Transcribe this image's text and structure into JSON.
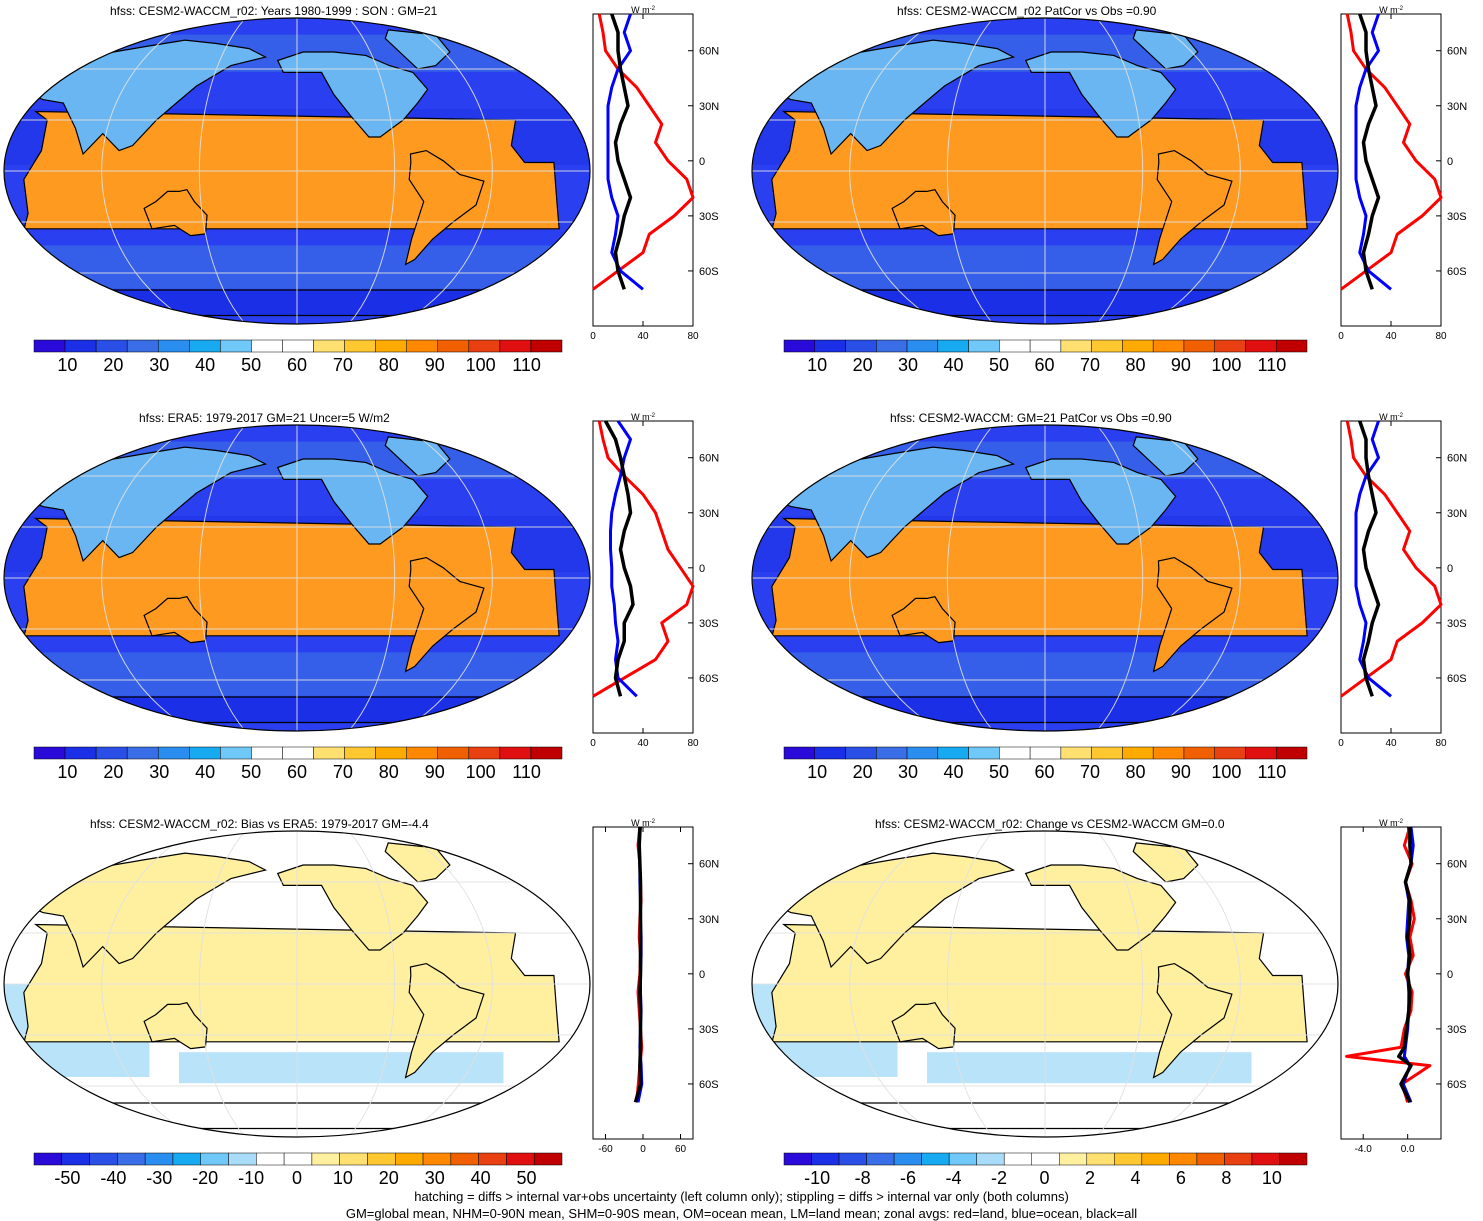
{
  "panels": [
    {
      "id": "p1",
      "title": "hfss: CESM2-WACCM_r02: Years 1980-1999 : SON : GM=21",
      "colorbar": {
        "labels": [
          "10",
          "20",
          "30",
          "40",
          "50",
          "60",
          "70",
          "80",
          "90",
          "100",
          "110"
        ]
      },
      "zonal": {
        "unit": "W m",
        "unit_sup": "-2",
        "xticks": [
          "0",
          "40",
          "80"
        ],
        "yticks": [
          "60N",
          "30N",
          "0",
          "30S",
          "60S"
        ]
      }
    },
    {
      "id": "p2",
      "title": "hfss: CESM2-WACCM_r02 PatCor vs Obs =0.90",
      "colorbar": {
        "labels": [
          "10",
          "20",
          "30",
          "40",
          "50",
          "60",
          "70",
          "80",
          "90",
          "100",
          "110"
        ]
      },
      "zonal": {
        "unit": "W m",
        "unit_sup": "-2",
        "xticks": [
          "0",
          "40",
          "80"
        ],
        "yticks": [
          "60N",
          "30N",
          "0",
          "30S",
          "60S"
        ]
      }
    },
    {
      "id": "p3",
      "title": "hfss: ERA5: 1979-2017 GM=21 Uncer=5 W/m2",
      "colorbar": {
        "labels": [
          "10",
          "20",
          "30",
          "40",
          "50",
          "60",
          "70",
          "80",
          "90",
          "100",
          "110"
        ]
      },
      "zonal": {
        "unit": "W m",
        "unit_sup": "-2",
        "xticks": [
          "0",
          "40",
          "80"
        ],
        "yticks": [
          "60N",
          "30N",
          "0",
          "30S",
          "60S"
        ]
      }
    },
    {
      "id": "p4",
      "title": "hfss: CESM2-WACCM: GM=21 PatCor vs Obs =0.90",
      "colorbar": {
        "labels": [
          "10",
          "20",
          "30",
          "40",
          "50",
          "60",
          "70",
          "80",
          "90",
          "100",
          "110"
        ]
      },
      "zonal": {
        "unit": "W m",
        "unit_sup": "-2",
        "xticks": [
          "0",
          "40",
          "80"
        ],
        "yticks": [
          "60N",
          "30N",
          "0",
          "30S",
          "60S"
        ]
      }
    },
    {
      "id": "p5",
      "title": "hfss: CESM2-WACCM_r02: Bias vs ERA5: 1979-2017  GM=-4.4",
      "colorbar": {
        "labels": [
          "-50",
          "-40",
          "-30",
          "-20",
          "-10",
          "0",
          "10",
          "20",
          "30",
          "40",
          "50"
        ]
      },
      "zonal": {
        "unit": "W m",
        "unit_sup": "-2",
        "xticks": [
          "-60",
          "0",
          "60"
        ],
        "yticks": [
          "60N",
          "30N",
          "0",
          "30S",
          "60S"
        ]
      }
    },
    {
      "id": "p6",
      "title": "hfss: CESM2-WACCM_r02: Change vs CESM2-WACCM GM=0.0",
      "colorbar": {
        "labels": [
          "-10",
          "-8",
          "-6",
          "-4",
          "-2",
          "0",
          "2",
          "4",
          "6",
          "8",
          "10"
        ]
      },
      "zonal": {
        "unit": "W m",
        "unit_sup": "-2",
        "xticks": [
          "-4.0",
          "0.0"
        ],
        "yticks": [
          "60N",
          "30N",
          "0",
          "30S",
          "60S"
        ]
      }
    }
  ],
  "footer": {
    "line1": "hatching = diffs > internal var+obs uncertainty (left column only); stippling = diffs > internal var only (both columns)",
    "line2": "GM=global mean, NHM=0-90N mean, SHM=0-90S mean, OM=ocean mean, LM=land mean; zonal avgs: red=land, blue=ocean, black=all"
  },
  "colors": {
    "land": "#ff0000",
    "ocean": "#0000ff",
    "all": "#000000",
    "abs_scale": [
      "#2a0ad8",
      "#1b2fe6",
      "#2a4fe6",
      "#3a6ee6",
      "#2a8ef0",
      "#18aaf0",
      "#70c8f8",
      "#ffffff",
      "#ffffff",
      "#ffe070",
      "#ffc830",
      "#ffaa00",
      "#ff8800",
      "#f06000",
      "#e84010",
      "#e01010",
      "#c00000"
    ],
    "diff_scale": [
      "#2a0ad8",
      "#1b2fe6",
      "#2a4fe6",
      "#3a6ee6",
      "#2a8ef0",
      "#18aaf0",
      "#70c8f8",
      "#a8dcf8",
      "#ffffff",
      "#ffffff",
      "#fff0a0",
      "#ffe070",
      "#ffc830",
      "#ffaa00",
      "#ff8800",
      "#f06000",
      "#e84010",
      "#e01010",
      "#c00000"
    ]
  },
  "chart_data": [
    {
      "type": "heatmap",
      "panel": "p1",
      "projection": "robinson",
      "title": "hfss: CESM2-WACCM_r02: Years 1980-1999 : SON : GM=21",
      "colorbar_range": [
        10,
        110
      ],
      "global_mean": 21,
      "zonal_mean": {
        "xlim": [
          0,
          80
        ],
        "lat": [
          80,
          70,
          60,
          50,
          40,
          30,
          20,
          10,
          0,
          -10,
          -20,
          -30,
          -40,
          -50,
          -60,
          -70
        ],
        "land": [
          5,
          8,
          10,
          20,
          35,
          45,
          55,
          50,
          60,
          75,
          80,
          65,
          45,
          40,
          null,
          0
        ],
        "ocean": [
          30,
          25,
          30,
          20,
          15,
          12,
          12,
          12,
          12,
          12,
          15,
          20,
          18,
          15,
          22,
          40
        ],
        "all": [
          15,
          20,
          20,
          22,
          25,
          28,
          22,
          18,
          20,
          25,
          30,
          25,
          22,
          18,
          20,
          25
        ]
      }
    },
    {
      "type": "heatmap",
      "panel": "p2",
      "projection": "robinson",
      "title": "hfss: CESM2-WACCM_r02 PatCor vs Obs =0.90",
      "colorbar_range": [
        10,
        110
      ],
      "pattern_correlation": 0.9,
      "zonal_mean": {
        "xlim": [
          0,
          80
        ],
        "lat": [
          80,
          70,
          60,
          50,
          40,
          30,
          20,
          10,
          0,
          -10,
          -20,
          -30,
          -40,
          -50,
          -60,
          -70
        ],
        "land": [
          5,
          8,
          10,
          20,
          35,
          45,
          55,
          50,
          60,
          75,
          80,
          65,
          45,
          40,
          null,
          0
        ],
        "ocean": [
          30,
          25,
          30,
          20,
          15,
          12,
          12,
          12,
          12,
          12,
          15,
          20,
          18,
          15,
          22,
          40
        ],
        "all": [
          15,
          20,
          20,
          22,
          25,
          28,
          22,
          18,
          20,
          25,
          30,
          25,
          22,
          18,
          20,
          25
        ]
      }
    },
    {
      "type": "heatmap",
      "panel": "p3",
      "projection": "robinson",
      "title": "hfss: ERA5: 1979-2017 GM=21 Uncer=5 W/m2",
      "colorbar_range": [
        10,
        110
      ],
      "global_mean": 21,
      "uncertainty": 5,
      "zonal_mean": {
        "xlim": [
          0,
          80
        ],
        "lat": [
          80,
          70,
          60,
          50,
          40,
          30,
          20,
          10,
          0,
          -10,
          -20,
          -30,
          -40,
          -50,
          -60,
          -70
        ],
        "land": [
          5,
          8,
          12,
          25,
          40,
          50,
          55,
          60,
          70,
          80,
          75,
          55,
          60,
          50,
          null,
          0
        ],
        "ocean": [
          20,
          30,
          25,
          22,
          18,
          15,
          14,
          14,
          15,
          15,
          17,
          18,
          20,
          18,
          20,
          35
        ],
        "all": [
          10,
          18,
          22,
          25,
          28,
          30,
          25,
          22,
          25,
          30,
          32,
          25,
          25,
          20,
          18,
          22
        ]
      }
    },
    {
      "type": "heatmap",
      "panel": "p4",
      "projection": "robinson",
      "title": "hfss: CESM2-WACCM: GM=21 PatCor vs Obs =0.90",
      "colorbar_range": [
        10,
        110
      ],
      "global_mean": 21,
      "pattern_correlation": 0.9,
      "zonal_mean": {
        "xlim": [
          0,
          80
        ],
        "lat": [
          80,
          70,
          60,
          50,
          40,
          30,
          20,
          10,
          0,
          -10,
          -20,
          -30,
          -40,
          -50,
          -60,
          -70
        ],
        "land": [
          5,
          8,
          10,
          20,
          35,
          45,
          55,
          50,
          60,
          75,
          80,
          65,
          45,
          40,
          null,
          0
        ],
        "ocean": [
          30,
          25,
          30,
          20,
          15,
          12,
          12,
          12,
          12,
          12,
          15,
          20,
          18,
          15,
          22,
          40
        ],
        "all": [
          15,
          20,
          20,
          22,
          25,
          28,
          22,
          18,
          20,
          25,
          30,
          25,
          22,
          18,
          20,
          25
        ]
      }
    },
    {
      "type": "heatmap",
      "panel": "p5",
      "projection": "robinson",
      "title": "hfss: CESM2-WACCM_r02: Bias vs ERA5: 1979-2017  GM=-4.4",
      "colorbar_range": [
        -50,
        50
      ],
      "global_mean": -4.4,
      "zonal_mean": {
        "xlim": [
          -80,
          80
        ],
        "lat": [
          80,
          70,
          60,
          50,
          40,
          30,
          20,
          10,
          0,
          -10,
          -20,
          -30,
          -40,
          -50,
          -60,
          -70
        ],
        "land": [
          -5,
          -8,
          -5,
          -4,
          -3,
          -5,
          -6,
          -4,
          -5,
          -8,
          -6,
          -4,
          -2,
          -5,
          null,
          -10
        ],
        "ocean": [
          -4,
          -6,
          -5,
          -5,
          -4,
          -4,
          -3,
          -3,
          -4,
          -4,
          -3,
          -4,
          -5,
          -3,
          -2,
          -8
        ],
        "all": [
          -5,
          -6,
          -5,
          -4,
          -4,
          -4,
          -4,
          -4,
          -4,
          -5,
          -4,
          -4,
          -4,
          -5,
          -4,
          -12
        ]
      }
    },
    {
      "type": "heatmap",
      "panel": "p6",
      "projection": "robinson",
      "title": "hfss: CESM2-WACCM_r02: Change vs CESM2-WACCM GM=0.0",
      "colorbar_range": [
        -10,
        10
      ],
      "global_mean": 0.0,
      "zonal_mean": {
        "xlim": [
          -6,
          3
        ],
        "lat": [
          80,
          70,
          60,
          50,
          40,
          30,
          20,
          10,
          0,
          -10,
          -20,
          -30,
          -40,
          -45,
          -50,
          -60,
          -70
        ],
        "land": [
          0.2,
          -0.3,
          0.4,
          -0.2,
          0.3,
          0.6,
          0.2,
          0.5,
          -0.2,
          0.4,
          0.3,
          -0.3,
          -0.6,
          -5.5,
          2.0,
          -0.5,
          0
        ],
        "ocean": [
          0.3,
          0.5,
          0.3,
          -0.2,
          0.1,
          0.0,
          -0.1,
          0.1,
          0.0,
          0.1,
          0.1,
          0.0,
          -0.2,
          -0.3,
          0.2,
          -0.4,
          0.3
        ],
        "all": [
          0.2,
          0.2,
          0.3,
          -0.2,
          0.2,
          0.2,
          0.0,
          0.2,
          0.0,
          0.2,
          0.1,
          -0.1,
          -0.3,
          -0.8,
          0.3,
          -0.6,
          0.2
        ]
      }
    }
  ]
}
